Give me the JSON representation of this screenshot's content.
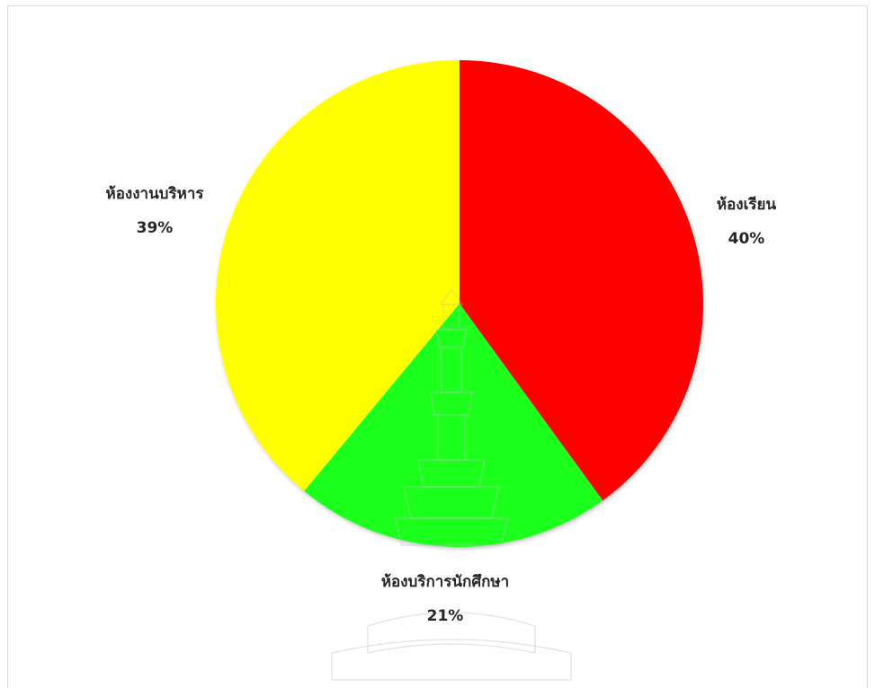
{
  "chart_data": {
    "type": "pie",
    "title": "",
    "categories": [
      "ห้องเรียน",
      "ห้องบริการนักศึกษา",
      "ห้องงานบริหาร"
    ],
    "values": [
      40,
      21,
      39
    ],
    "unit": "%",
    "data_labels": [
      "40%",
      "21%",
      "39%"
    ],
    "colors": [
      "#ff0000",
      "#1aff1a",
      "#ffff00"
    ],
    "start_angle_deg": 0,
    "direction": "clockwise",
    "legend": "none"
  },
  "decorations": {
    "watermark": "university-seal-watermark"
  }
}
